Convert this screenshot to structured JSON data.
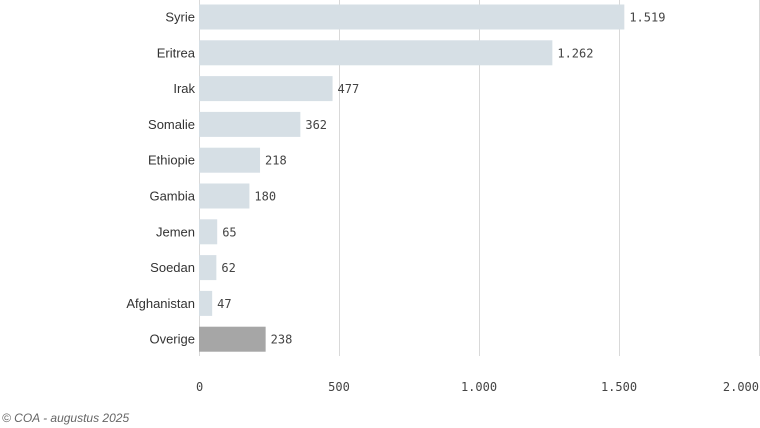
{
  "chart_data": {
    "type": "bar",
    "orientation": "horizontal",
    "categories": [
      "Syrie",
      "Eritrea",
      "Irak",
      "Somalie",
      "Ethiopie",
      "Gambia",
      "Jemen",
      "Soedan",
      "Afghanistan",
      "Overige"
    ],
    "values": [
      1519,
      1262,
      477,
      362,
      218,
      180,
      65,
      62,
      47,
      238
    ],
    "value_labels": [
      "1.519",
      "1.262",
      "477",
      "362",
      "218",
      "180",
      "65",
      "62",
      "47",
      "238"
    ],
    "xlim": [
      0,
      2000
    ],
    "x_ticks": [
      0,
      500,
      1000,
      1500,
      2000
    ],
    "x_tick_labels": [
      "0",
      "500",
      "1.000",
      "1.500",
      "2.000"
    ],
    "grid": "vertical",
    "colors": {
      "bar": "#d6dfe5",
      "bar_highlight": "#a6a6a6",
      "highlight_category": "Overige"
    }
  },
  "footer": {
    "credit": "© COA - augustus 2025"
  }
}
